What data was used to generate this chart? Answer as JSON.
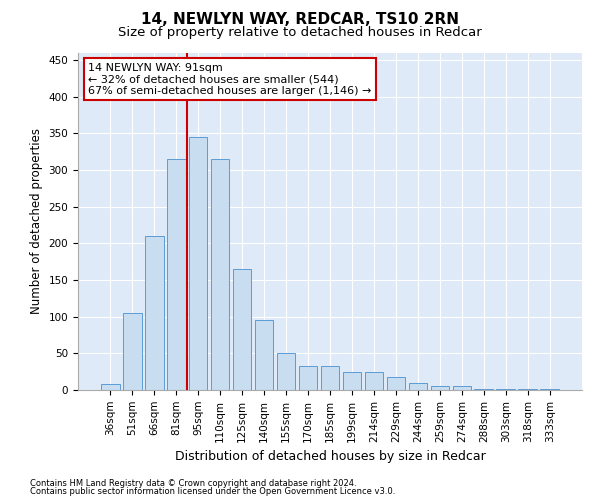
{
  "title": "14, NEWLYN WAY, REDCAR, TS10 2RN",
  "subtitle": "Size of property relative to detached houses in Redcar",
  "xlabel": "Distribution of detached houses by size in Redcar",
  "ylabel": "Number of detached properties",
  "categories": [
    "36sqm",
    "51sqm",
    "66sqm",
    "81sqm",
    "95sqm",
    "110sqm",
    "125sqm",
    "140sqm",
    "155sqm",
    "170sqm",
    "185sqm",
    "199sqm",
    "214sqm",
    "229sqm",
    "244sqm",
    "259sqm",
    "274sqm",
    "288sqm",
    "303sqm",
    "318sqm",
    "333sqm"
  ],
  "values": [
    8,
    105,
    210,
    315,
    345,
    315,
    165,
    95,
    50,
    33,
    33,
    25,
    25,
    18,
    10,
    5,
    5,
    2,
    2,
    2,
    2
  ],
  "bar_color": "#c9ddf0",
  "bar_edge_color": "#5b9bd5",
  "vline_x_index": 4,
  "vline_color": "#cc0000",
  "annotation_text": "14 NEWLYN WAY: 91sqm\n← 32% of detached houses are smaller (544)\n67% of semi-detached houses are larger (1,146) →",
  "annotation_box_facecolor": "#ffffff",
  "annotation_box_edge": "#cc0000",
  "ylim": [
    0,
    460
  ],
  "yticks": [
    0,
    50,
    100,
    150,
    200,
    250,
    300,
    350,
    400,
    450
  ],
  "footnote1": "Contains HM Land Registry data © Crown copyright and database right 2024.",
  "footnote2": "Contains public sector information licensed under the Open Government Licence v3.0.",
  "bg_color": "#deeaf8",
  "title_fontsize": 11,
  "subtitle_fontsize": 9.5,
  "tick_fontsize": 7.5,
  "ylabel_fontsize": 8.5,
  "xlabel_fontsize": 9,
  "footnote_fontsize": 6,
  "annotation_fontsize": 8
}
